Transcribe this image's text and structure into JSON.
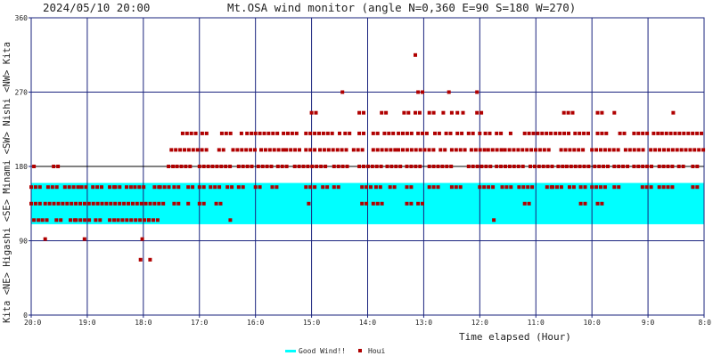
{
  "chart_data": {
    "type": "scatter",
    "header_timestamp": "2024/05/10 20:00",
    "title": "Mt.OSA wind monitor (angle N=0,360 E=90 S=180 W=270)",
    "xlabel": "Time elapsed (Hour)",
    "ylabel": "Kita <NE> Higashi <SE> Minami <SW> Nishi <NW> Kita",
    "ylim": [
      0,
      360
    ],
    "xlim": [
      0,
      12
    ],
    "y_ticks": [
      "0",
      "90",
      "180",
      "270",
      "360"
    ],
    "y_tick_values": [
      0,
      90,
      180,
      270,
      360
    ],
    "x_tick_labels": [
      "20:0",
      "19:0",
      "18:0",
      "17:0",
      "16:0",
      "15:0",
      "14:0",
      "13:0",
      "12:0",
      "11:0",
      "10:0",
      "9:0",
      "8:0"
    ],
    "grid": true,
    "legend_position": "bottom-center",
    "good_wind_band": {
      "from_deg": 110,
      "to_deg": 160,
      "label": "Good Wind!!",
      "color": "#00ffff"
    },
    "series": [
      {
        "name": "Houi",
        "color": "#b00000",
        "groups": [
          {
            "y": 180,
            "spans": [
              [
                0.05,
                0.12
              ],
              [
                0.4,
                0.48
              ],
              [
                2.45,
                2.55
              ],
              [
                2.6,
                2.9
              ],
              [
                3.0,
                3.6
              ],
              [
                3.7,
                3.95
              ],
              [
                4.05,
                4.3
              ],
              [
                4.4,
                4.6
              ],
              [
                4.7,
                5.3
              ],
              [
                5.4,
                5.7
              ],
              [
                5.85,
                6.25
              ],
              [
                6.35,
                6.6
              ],
              [
                6.7,
                7.0
              ],
              [
                7.1,
                7.55
              ],
              [
                7.8,
                8.2
              ],
              [
                8.3,
                8.8
              ],
              [
                8.9,
                9.3
              ],
              [
                9.4,
                9.5
              ],
              [
                9.55,
                10.0
              ],
              [
                10.05,
                10.3
              ],
              [
                10.4,
                10.7
              ],
              [
                10.75,
                11.1
              ],
              [
                11.2,
                11.5
              ],
              [
                11.55,
                11.65
              ],
              [
                11.8,
                11.9
              ]
            ]
          },
          {
            "y": 200,
            "spans": [
              [
                2.5,
                3.2
              ],
              [
                3.35,
                3.5
              ],
              [
                3.6,
                4.0
              ],
              [
                4.1,
                4.5
              ],
              [
                4.55,
                4.85
              ],
              [
                4.9,
                5.1
              ],
              [
                5.15,
                5.65
              ],
              [
                5.75,
                5.95
              ],
              [
                6.1,
                6.5
              ],
              [
                6.55,
                7.2
              ],
              [
                7.3,
                7.45
              ],
              [
                7.5,
                7.8
              ],
              [
                7.85,
                8.1
              ],
              [
                8.15,
                8.4
              ],
              [
                8.45,
                9.3
              ],
              [
                9.45,
                9.9
              ],
              [
                10.0,
                10.5
              ],
              [
                10.6,
                10.95
              ],
              [
                11.05,
                12.0
              ]
            ]
          },
          {
            "y": 220,
            "spans": [
              [
                2.7,
                2.95
              ],
              [
                3.05,
                3.2
              ],
              [
                3.4,
                3.6
              ],
              [
                3.75,
                3.8
              ],
              [
                3.85,
                3.95
              ],
              [
                4.0,
                4.4
              ],
              [
                4.5,
                4.8
              ],
              [
                4.9,
                5.4
              ],
              [
                5.5,
                5.55
              ],
              [
                5.6,
                5.7
              ],
              [
                5.85,
                6.0
              ],
              [
                6.1,
                6.25
              ],
              [
                6.3,
                6.5
              ],
              [
                6.55,
                6.8
              ],
              [
                6.9,
                7.1
              ],
              [
                7.2,
                7.3
              ],
              [
                7.4,
                7.5
              ],
              [
                7.6,
                7.7
              ],
              [
                7.8,
                7.9
              ],
              [
                8.0,
                8.05
              ],
              [
                8.1,
                8.2
              ],
              [
                8.3,
                8.45
              ],
              [
                8.55,
                8.6
              ],
              [
                8.8,
                9.3
              ],
              [
                9.35,
                9.6
              ],
              [
                9.7,
                10.0
              ],
              [
                10.1,
                10.3
              ],
              [
                10.5,
                10.65
              ],
              [
                10.75,
                11.0
              ],
              [
                11.1,
                11.2
              ],
              [
                11.25,
                12.0
              ]
            ]
          },
          {
            "y": 245,
            "spans": [
              [
                5.0,
                5.15
              ],
              [
                5.85,
                5.95
              ],
              [
                6.25,
                6.35
              ],
              [
                6.65,
                6.75
              ],
              [
                6.85,
                7.0
              ],
              [
                7.1,
                7.25
              ],
              [
                7.35,
                7.4
              ],
              [
                7.5,
                7.55
              ],
              [
                7.6,
                7.65
              ],
              [
                7.7,
                7.75
              ],
              [
                7.95,
                8.1
              ],
              [
                9.5,
                9.7
              ],
              [
                10.1,
                10.2
              ],
              [
                10.4,
                10.45
              ],
              [
                11.45,
                11.5
              ]
            ]
          },
          {
            "y": 270,
            "spans": [
              [
                5.55,
                5.6
              ],
              [
                6.9,
                7.0
              ],
              [
                7.45,
                7.5
              ],
              [
                7.95,
                8.0
              ]
            ]
          },
          {
            "y": 315,
            "spans": [
              [
                6.85,
                6.9
              ]
            ]
          },
          {
            "y": 155,
            "spans": [
              [
                0.0,
                0.2
              ],
              [
                0.3,
                0.5
              ],
              [
                0.6,
                0.85
              ],
              [
                0.9,
                1.05
              ],
              [
                1.1,
                1.3
              ],
              [
                1.4,
                1.5
              ],
              [
                1.5,
                1.6
              ],
              [
                1.7,
                1.8
              ],
              [
                1.85,
                2.05
              ],
              [
                2.2,
                2.3
              ],
              [
                2.3,
                2.5
              ],
              [
                2.55,
                2.7
              ],
              [
                2.8,
                2.9
              ],
              [
                3.0,
                3.1
              ],
              [
                3.2,
                3.4
              ],
              [
                3.5,
                3.6
              ],
              [
                3.7,
                3.8
              ],
              [
                4.0,
                4.1
              ],
              [
                4.3,
                4.4
              ],
              [
                4.9,
                5.1
              ],
              [
                5.2,
                5.3
              ],
              [
                5.4,
                5.5
              ],
              [
                5.9,
                6.1
              ],
              [
                6.15,
                6.3
              ],
              [
                6.4,
                6.5
              ],
              [
                6.7,
                6.8
              ],
              [
                7.1,
                7.3
              ],
              [
                7.5,
                7.7
              ],
              [
                8.0,
                8.3
              ],
              [
                8.4,
                8.6
              ],
              [
                8.7,
                9.0
              ],
              [
                9.2,
                9.3
              ],
              [
                9.3,
                9.5
              ],
              [
                9.6,
                9.7
              ],
              [
                9.8,
                9.9
              ],
              [
                10.0,
                10.3
              ],
              [
                10.4,
                10.5
              ],
              [
                10.9,
                11.1
              ],
              [
                11.2,
                11.5
              ],
              [
                11.8,
                11.9
              ]
            ]
          },
          {
            "y": 135,
            "spans": [
              [
                0.0,
                0.2
              ],
              [
                0.25,
                2.4
              ],
              [
                2.55,
                2.7
              ],
              [
                2.8,
                2.85
              ],
              [
                3.0,
                3.1
              ],
              [
                3.3,
                3.4
              ],
              [
                4.95,
                5.0
              ],
              [
                5.9,
                6.0
              ],
              [
                6.1,
                6.3
              ],
              [
                6.7,
                6.8
              ],
              [
                6.9,
                7.0
              ],
              [
                8.8,
                8.9
              ],
              [
                9.8,
                9.9
              ],
              [
                10.1,
                10.2
              ]
            ]
          },
          {
            "y": 115,
            "spans": [
              [
                0.05,
                0.15
              ],
              [
                0.2,
                0.3
              ],
              [
                0.45,
                0.6
              ],
              [
                0.7,
                0.8
              ],
              [
                0.8,
                1.1
              ],
              [
                1.15,
                1.3
              ],
              [
                1.4,
                1.5
              ],
              [
                1.55,
                2.1
              ],
              [
                2.1,
                2.3
              ],
              [
                3.55,
                3.6
              ],
              [
                8.25,
                8.3
              ]
            ]
          },
          {
            "y": 92,
            "spans": [
              [
                0.25,
                0.3
              ],
              [
                0.95,
                1.0
              ],
              [
                1.98,
                2.02
              ]
            ]
          },
          {
            "y": 67,
            "spans": [
              [
                1.95,
                2.0
              ],
              [
                2.12,
                2.17
              ]
            ]
          }
        ]
      }
    ]
  }
}
